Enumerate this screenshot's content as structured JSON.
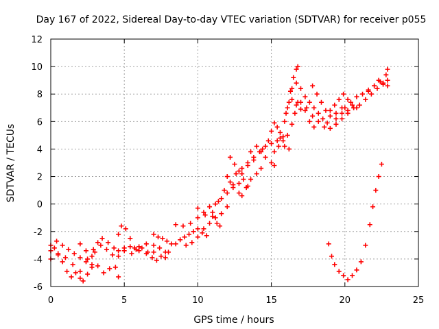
{
  "chart_data": {
    "type": "scatter",
    "title": "Day 167 of 2022, Sidereal Day-to-day VTEC variation (SDTVAR) for receiver p055",
    "xlabel": "GPS time / hours",
    "ylabel": "SDTVAR / TECUs",
    "xlim": [
      0,
      25
    ],
    "ylim": [
      -6,
      12
    ],
    "xticks": [
      0,
      5,
      10,
      15,
      20,
      25
    ],
    "yticks": [
      -6,
      -4,
      -2,
      0,
      2,
      4,
      6,
      8,
      10,
      12
    ],
    "grid": true,
    "marker": "plus",
    "color": "#ff0000",
    "series": [
      {
        "values": [
          [
            0.0,
            -3.4
          ],
          [
            0.25,
            -3.2
          ],
          [
            0.5,
            -3.6
          ],
          [
            0.8,
            -4.2
          ],
          [
            1.1,
            -4.9
          ],
          [
            1.4,
            -5.3
          ],
          [
            1.7,
            -5.0
          ],
          [
            2.0,
            -5.4
          ],
          [
            2.2,
            -5.6
          ],
          [
            0.0,
            -3.0
          ],
          [
            0.4,
            -2.7
          ],
          [
            0.8,
            -3.0
          ],
          [
            1.2,
            -3.3
          ],
          [
            1.6,
            -3.6
          ],
          [
            2.0,
            -3.9
          ],
          [
            2.4,
            -4.2
          ],
          [
            2.8,
            -4.4
          ],
          [
            0.0,
            -4.0
          ],
          [
            0.5,
            -3.7
          ],
          [
            1.0,
            -3.9
          ],
          [
            1.5,
            -4.4
          ],
          [
            2.0,
            -4.9
          ],
          [
            2.5,
            -5.1
          ],
          [
            2.8,
            -4.6
          ],
          [
            2.0,
            -2.9
          ],
          [
            2.4,
            -3.4
          ],
          [
            2.8,
            -3.8
          ],
          [
            3.2,
            -4.5
          ],
          [
            3.6,
            -5.0
          ],
          [
            4.0,
            -4.7
          ],
          [
            4.4,
            -4.6
          ],
          [
            4.6,
            -5.3
          ],
          [
            2.5,
            -4.0
          ],
          [
            2.9,
            -3.3
          ],
          [
            3.2,
            -2.8
          ],
          [
            3.5,
            -2.5
          ],
          [
            3.9,
            -2.8
          ],
          [
            4.3,
            -3.2
          ],
          [
            4.6,
            -3.4
          ],
          [
            3.0,
            -3.5
          ],
          [
            3.4,
            -3.0
          ],
          [
            3.8,
            -3.3
          ],
          [
            4.2,
            -3.7
          ],
          [
            4.6,
            -3.8
          ],
          [
            5.0,
            -3.4
          ],
          [
            4.6,
            -2.2
          ],
          [
            4.8,
            -1.6
          ],
          [
            5.1,
            -1.8
          ],
          [
            5.4,
            -2.5
          ],
          [
            5.7,
            -3.2
          ],
          [
            6.0,
            -3.4
          ],
          [
            5.0,
            -3.2
          ],
          [
            5.4,
            -3.1
          ],
          [
            5.8,
            -3.3
          ],
          [
            6.2,
            -3.2
          ],
          [
            6.6,
            -3.5
          ],
          [
            7.0,
            -3.5
          ],
          [
            5.5,
            -3.6
          ],
          [
            6.0,
            -3.1
          ],
          [
            6.5,
            -2.9
          ],
          [
            7.0,
            -3.0
          ],
          [
            7.4,
            -3.2
          ],
          [
            7.8,
            -3.5
          ],
          [
            8.0,
            -3.5
          ],
          [
            6.5,
            -3.6
          ],
          [
            6.9,
            -3.9
          ],
          [
            7.2,
            -4.1
          ],
          [
            7.5,
            -3.8
          ],
          [
            7.8,
            -3.9
          ],
          [
            7.0,
            -2.2
          ],
          [
            7.3,
            -2.4
          ],
          [
            7.6,
            -2.5
          ],
          [
            7.9,
            -2.7
          ],
          [
            8.2,
            -2.9
          ],
          [
            8.5,
            -2.9
          ],
          [
            8.8,
            -2.6
          ],
          [
            9.1,
            -2.4
          ],
          [
            9.4,
            -2.2
          ],
          [
            9.7,
            -2.0
          ],
          [
            10.0,
            -1.8
          ],
          [
            10.3,
            -2.1
          ],
          [
            10.6,
            -2.3
          ],
          [
            8.5,
            -1.5
          ],
          [
            9.0,
            -1.6
          ],
          [
            9.5,
            -1.4
          ],
          [
            10.0,
            -1.0
          ],
          [
            10.5,
            -0.8
          ],
          [
            11.0,
            -0.9
          ],
          [
            11.3,
            -1.4
          ],
          [
            11.5,
            -1.6
          ],
          [
            9.2,
            -3.0
          ],
          [
            9.6,
            -2.8
          ],
          [
            10.0,
            -2.4
          ],
          [
            10.4,
            -1.8
          ],
          [
            10.8,
            -1.4
          ],
          [
            11.2,
            -1.0
          ],
          [
            11.6,
            -0.7
          ],
          [
            12.0,
            -0.2
          ],
          [
            10.0,
            -0.3
          ],
          [
            10.4,
            -0.6
          ],
          [
            10.8,
            -0.2
          ],
          [
            11.2,
            0.0
          ],
          [
            11.6,
            0.4
          ],
          [
            12.0,
            0.8
          ],
          [
            12.4,
            1.2
          ],
          [
            12.8,
            1.5
          ],
          [
            11.0,
            -0.6
          ],
          [
            11.4,
            0.2
          ],
          [
            11.8,
            1.0
          ],
          [
            12.2,
            1.6
          ],
          [
            12.6,
            2.2
          ],
          [
            13.0,
            2.6
          ],
          [
            13.4,
            3.0
          ],
          [
            13.8,
            3.2
          ],
          [
            12.0,
            2.0
          ],
          [
            12.4,
            1.4
          ],
          [
            12.8,
            0.8
          ],
          [
            13.0,
            0.6
          ],
          [
            13.3,
            1.2
          ],
          [
            13.6,
            1.8
          ],
          [
            14.0,
            2.2
          ],
          [
            14.3,
            2.6
          ],
          [
            12.2,
            3.4
          ],
          [
            12.5,
            2.9
          ],
          [
            12.8,
            2.4
          ],
          [
            13.1,
            1.8
          ],
          [
            13.4,
            1.3
          ],
          [
            13.0,
            2.2
          ],
          [
            13.4,
            2.8
          ],
          [
            13.8,
            3.4
          ],
          [
            14.2,
            3.8
          ],
          [
            14.6,
            4.2
          ],
          [
            15.0,
            4.4
          ],
          [
            15.4,
            4.6
          ],
          [
            15.8,
            4.9
          ],
          [
            13.6,
            3.8
          ],
          [
            14.0,
            4.2
          ],
          [
            14.3,
            3.8
          ],
          [
            14.6,
            3.4
          ],
          [
            15.0,
            3.0
          ],
          [
            15.2,
            2.8
          ],
          [
            14.4,
            4.0
          ],
          [
            14.8,
            4.6
          ],
          [
            15.0,
            5.3
          ],
          [
            15.2,
            5.9
          ],
          [
            15.4,
            5.6
          ],
          [
            15.6,
            4.8
          ],
          [
            15.9,
            4.2
          ],
          [
            16.2,
            4.0
          ],
          [
            15.2,
            3.8
          ],
          [
            15.5,
            4.2
          ],
          [
            15.8,
            4.6
          ],
          [
            16.1,
            5.0
          ],
          [
            16.4,
            5.8
          ],
          [
            16.6,
            6.6
          ],
          [
            16.8,
            7.4
          ],
          [
            15.6,
            5.2
          ],
          [
            15.9,
            6.0
          ],
          [
            16.1,
            7.0
          ],
          [
            16.3,
            8.2
          ],
          [
            16.5,
            9.2
          ],
          [
            16.7,
            9.8
          ],
          [
            16.8,
            10.0
          ],
          [
            16.0,
            6.6
          ],
          [
            16.2,
            7.4
          ],
          [
            16.4,
            7.6
          ],
          [
            16.7,
            7.2
          ],
          [
            17.0,
            6.9
          ],
          [
            17.3,
            6.8
          ],
          [
            17.6,
            6.0
          ],
          [
            17.9,
            5.6
          ],
          [
            16.4,
            8.4
          ],
          [
            16.7,
            8.8
          ],
          [
            17.0,
            8.4
          ],
          [
            17.3,
            7.8
          ],
          [
            17.6,
            7.4
          ],
          [
            17.9,
            7.0
          ],
          [
            18.2,
            6.6
          ],
          [
            18.5,
            6.2
          ],
          [
            18.8,
            5.9
          ],
          [
            17.0,
            7.4
          ],
          [
            17.4,
            7.0
          ],
          [
            17.8,
            6.4
          ],
          [
            18.2,
            6.0
          ],
          [
            18.6,
            5.6
          ],
          [
            19.0,
            5.5
          ],
          [
            19.4,
            5.8
          ],
          [
            19.8,
            6.2
          ],
          [
            20.2,
            6.6
          ],
          [
            20.6,
            7.0
          ],
          [
            21.0,
            7.2
          ],
          [
            17.8,
            8.6
          ],
          [
            18.1,
            8.0
          ],
          [
            18.4,
            7.4
          ],
          [
            18.7,
            6.8
          ],
          [
            19.0,
            6.4
          ],
          [
            19.4,
            6.6
          ],
          [
            19.8,
            7.0
          ],
          [
            19.0,
            6.8
          ],
          [
            19.3,
            7.2
          ],
          [
            19.6,
            7.6
          ],
          [
            19.9,
            8.0
          ],
          [
            20.2,
            7.6
          ],
          [
            20.5,
            7.2
          ],
          [
            20.8,
            7.0
          ],
          [
            19.4,
            6.2
          ],
          [
            19.8,
            6.6
          ],
          [
            20.2,
            6.8
          ],
          [
            20.6,
            7.0
          ],
          [
            21.0,
            7.2
          ],
          [
            21.4,
            7.6
          ],
          [
            21.8,
            8.0
          ],
          [
            22.2,
            8.4
          ],
          [
            22.6,
            8.7
          ],
          [
            22.9,
            9.0
          ],
          [
            20.0,
            7.0
          ],
          [
            20.4,
            7.4
          ],
          [
            20.8,
            7.8
          ],
          [
            21.2,
            8.0
          ],
          [
            21.6,
            8.3
          ],
          [
            22.0,
            8.6
          ],
          [
            22.4,
            8.9
          ],
          [
            22.8,
            9.4
          ],
          [
            22.9,
            9.8
          ],
          [
            21.6,
            8.2
          ],
          [
            22.0,
            8.6
          ],
          [
            22.3,
            9.0
          ],
          [
            22.6,
            8.8
          ],
          [
            22.9,
            8.6
          ],
          [
            18.9,
            -2.9
          ],
          [
            19.1,
            -3.8
          ],
          [
            19.3,
            -4.4
          ],
          [
            19.6,
            -4.9
          ],
          [
            19.9,
            -5.2
          ],
          [
            20.2,
            -5.5
          ],
          [
            20.5,
            -5.2
          ],
          [
            20.8,
            -4.8
          ],
          [
            21.1,
            -4.2
          ],
          [
            21.4,
            -3.0
          ],
          [
            21.7,
            -1.5
          ],
          [
            21.9,
            -0.2
          ],
          [
            22.1,
            1.0
          ],
          [
            22.3,
            2.0
          ],
          [
            22.5,
            2.9
          ]
        ]
      }
    ]
  }
}
